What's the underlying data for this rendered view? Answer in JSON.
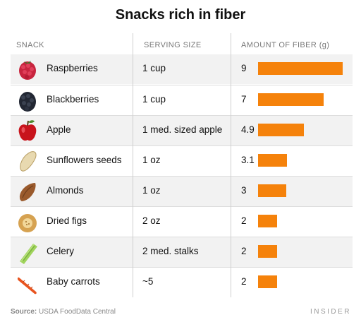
{
  "title": "Snacks rich in fiber",
  "headers": {
    "snack": "SNACK",
    "serving": "SERVING SIZE",
    "fiber": "AMOUNT OF FIBER (g)"
  },
  "footer": {
    "source_label": "Source:",
    "source": "USDA FoodData Central",
    "brand": "INSIDER"
  },
  "colors": {
    "bar": "#f5820b",
    "row_shade": "#f2f2f2"
  },
  "chart_data": {
    "type": "bar",
    "orientation": "horizontal",
    "title": "Snacks rich in fiber",
    "xlabel": "AMOUNT OF FIBER (g)",
    "xlim": [
      0,
      9
    ],
    "grid": false,
    "categories": [
      "Raspberries",
      "Blackberries",
      "Apple",
      "Sunflowers seeds",
      "Almonds",
      "Dried figs",
      "Celery",
      "Baby carrots"
    ],
    "serving_sizes": [
      "1 cup",
      "1 cup",
      "1 med. sized apple",
      "1 oz",
      "1 oz",
      "2 oz",
      "2 med. stalks",
      "~5"
    ],
    "values": [
      9,
      7,
      4.9,
      3.1,
      3,
      2,
      2,
      2
    ],
    "value_labels": [
      "9",
      "7",
      "4.9",
      "3.1",
      "3",
      "2",
      "2",
      "2"
    ],
    "icons": [
      "raspberry-icon",
      "blackberry-icon",
      "apple-icon",
      "sunflower-seed-icon",
      "almond-icon",
      "dried-fig-icon",
      "celery-icon",
      "carrot-icon"
    ]
  }
}
